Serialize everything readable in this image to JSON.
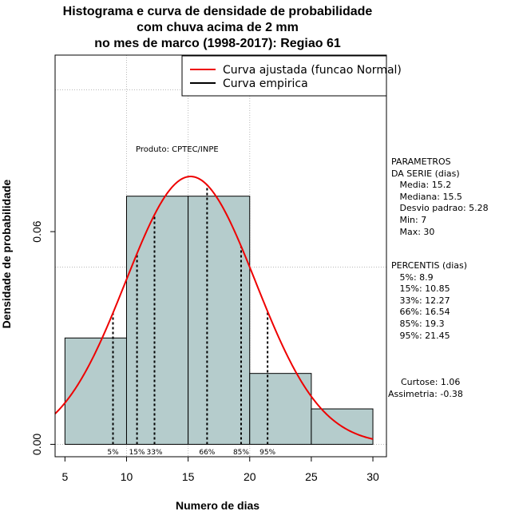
{
  "chart_data": {
    "type": "bar",
    "title_lines": [
      "Histograma e curva de densidade de probabilidade",
      "com chuva acima de 2 mm",
      "no mes de marco (1998-2017): Regiao 61"
    ],
    "xlabel": "Numero de dias",
    "ylabel": "Densidade de probabilidade",
    "xlim": [
      4.2,
      31.1
    ],
    "ylim": [
      -0.0035,
      0.1098
    ],
    "x_ticks": [
      5,
      10,
      15,
      20,
      25,
      30
    ],
    "y_ticks": [
      0.0,
      0.06
    ],
    "y_tick_labels": [
      "0.00",
      "0.06"
    ],
    "grid": true,
    "bins": [
      {
        "x0": 5,
        "x1": 10,
        "density": 0.03
      },
      {
        "x0": 10,
        "x1": 15,
        "density": 0.07
      },
      {
        "x0": 15,
        "x1": 20,
        "density": 0.07
      },
      {
        "x0": 20,
        "x1": 25,
        "density": 0.02
      },
      {
        "x0": 25,
        "x1": 30,
        "density": 0.01
      }
    ],
    "bar_color": "#b5cccc",
    "normal_curve": {
      "mean": 15.2,
      "sd": 5.28,
      "color": "#ee0000"
    },
    "percentiles": [
      {
        "label": "5%",
        "value": 8.9
      },
      {
        "label": "15%",
        "value": 10.85
      },
      {
        "label": "33%",
        "value": 12.27
      },
      {
        "label": "66%",
        "value": 16.54
      },
      {
        "label": "85%",
        "value": 19.3
      },
      {
        "label": "95%",
        "value": 21.45
      }
    ],
    "legend": {
      "position": "top-right",
      "entries": [
        {
          "label": "Curva ajustada (funcao Normal)",
          "color": "#ee0000"
        },
        {
          "label": "Curva empirica",
          "color": "#000000"
        }
      ]
    },
    "annotation": "Produto: CPTEC/INPE"
  },
  "side_panel": {
    "parametros": [
      "PARAMETROS",
      "DA SERIE (dias)",
      "   Media: 15.2",
      "   Mediana: 15.5",
      "   Desvio padrao: 5.28",
      "   Min: 7",
      "   Max: 30"
    ],
    "percentis": [
      "PERCENTIS (dias)",
      "   5%: 8.9",
      "   15%: 10.85",
      "   33%: 12.27",
      "   66%: 16.54",
      "   85%: 19.3",
      "   95%: 21.45"
    ],
    "curtose": "Curtose: 1.06",
    "assimetria": "Assimetria: -0.38"
  }
}
